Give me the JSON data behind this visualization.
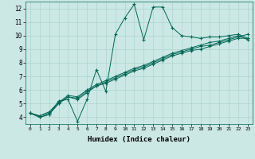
{
  "xlabel": "Humidex (Indice chaleur)",
  "ylabel": "",
  "background_color": "#cce8e4",
  "grid_color": "#aad4cc",
  "line_color": "#006655",
  "xlim": [
    -0.5,
    23.5
  ],
  "ylim": [
    3.5,
    12.5
  ],
  "xticks": [
    0,
    1,
    2,
    3,
    4,
    5,
    6,
    7,
    8,
    9,
    10,
    11,
    12,
    13,
    14,
    15,
    16,
    17,
    18,
    19,
    20,
    21,
    22,
    23
  ],
  "yticks": [
    4,
    5,
    6,
    7,
    8,
    9,
    10,
    11,
    12
  ],
  "lines": [
    {
      "x": [
        0,
        1,
        2,
        3,
        4,
        5,
        6,
        7,
        8,
        9,
        10,
        11,
        12,
        13,
        14,
        15,
        16,
        17,
        18,
        19,
        20,
        21,
        22,
        23
      ],
      "y": [
        4.3,
        4.0,
        4.2,
        5.2,
        5.3,
        3.7,
        5.3,
        7.5,
        5.9,
        10.1,
        11.3,
        12.3,
        9.7,
        12.1,
        12.1,
        10.6,
        10.0,
        9.9,
        9.8,
        9.9,
        9.9,
        10.0,
        10.1,
        9.8
      ]
    },
    {
      "x": [
        0,
        1,
        2,
        3,
        4,
        5,
        6,
        7,
        8,
        9,
        10,
        11,
        12,
        13,
        14,
        15,
        16,
        17,
        18,
        19,
        20,
        21,
        22,
        23
      ],
      "y": [
        4.3,
        4.0,
        4.2,
        5.0,
        5.5,
        5.3,
        5.8,
        6.3,
        6.5,
        6.8,
        7.1,
        7.4,
        7.6,
        7.9,
        8.2,
        8.5,
        8.7,
        8.9,
        9.0,
        9.2,
        9.4,
        9.6,
        9.8,
        9.8
      ]
    },
    {
      "x": [
        0,
        1,
        2,
        3,
        4,
        5,
        6,
        7,
        8,
        9,
        10,
        11,
        12,
        13,
        14,
        15,
        16,
        17,
        18,
        19,
        20,
        21,
        22,
        23
      ],
      "y": [
        4.3,
        4.1,
        4.3,
        5.0,
        5.5,
        5.4,
        5.9,
        6.3,
        6.6,
        6.9,
        7.2,
        7.5,
        7.7,
        8.0,
        8.3,
        8.6,
        8.8,
        9.0,
        9.2,
        9.3,
        9.5,
        9.7,
        9.9,
        10.1
      ]
    },
    {
      "x": [
        0,
        1,
        2,
        3,
        4,
        5,
        6,
        7,
        8,
        9,
        10,
        11,
        12,
        13,
        14,
        15,
        16,
        17,
        18,
        19,
        20,
        21,
        22,
        23
      ],
      "y": [
        4.3,
        4.1,
        4.4,
        5.1,
        5.6,
        5.5,
        6.0,
        6.4,
        6.7,
        7.0,
        7.3,
        7.6,
        7.8,
        8.1,
        8.4,
        8.7,
        8.9,
        9.1,
        9.3,
        9.5,
        9.6,
        9.8,
        10.0,
        9.7
      ]
    }
  ]
}
